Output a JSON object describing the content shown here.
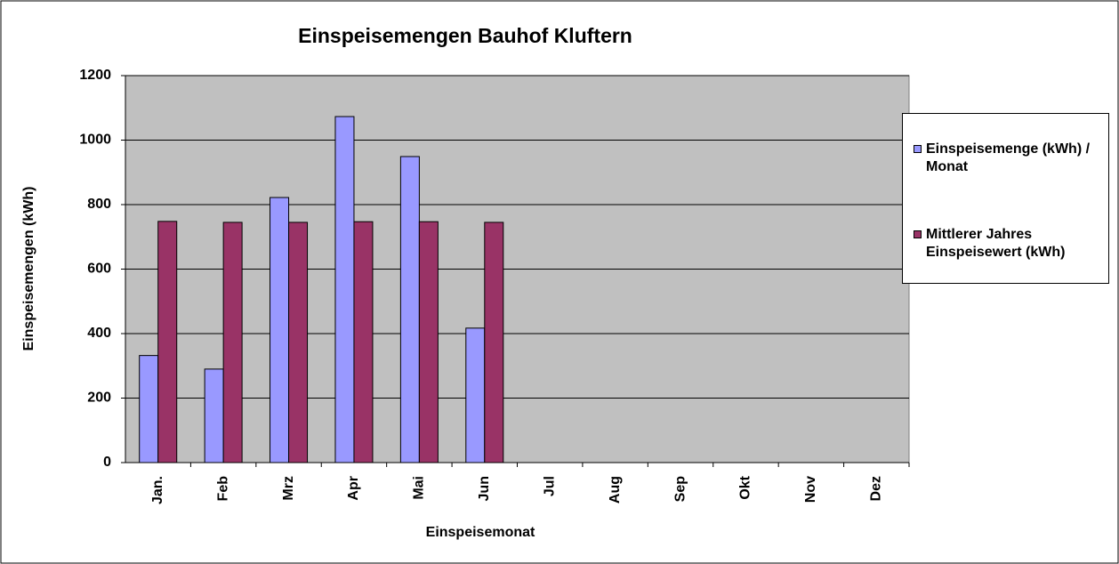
{
  "chart_data": {
    "type": "bar",
    "title": "Einspeisemengen Bauhof Kluftern",
    "x_label": "Einspeisemonat",
    "y_label": "Einspeisemengen (kWh)",
    "categories": [
      "Jan.",
      "Feb",
      "Mrz",
      "Apr",
      "Mai",
      "Jun",
      "Jul",
      "Aug",
      "Sep",
      "Okt",
      "Nov",
      "Dez"
    ],
    "series": [
      {
        "name": "Einspeisemenge (kWh) / Monat",
        "color": "#9999ff",
        "values": [
          332,
          290,
          822,
          1073,
          949,
          417,
          null,
          null,
          null,
          null,
          null,
          null
        ]
      },
      {
        "name": "Mittlerer Jahres Einspeisewert (kWh)",
        "color": "#993366",
        "values": [
          748,
          745,
          745,
          747,
          747,
          745,
          null,
          null,
          null,
          null,
          null,
          null
        ]
      }
    ],
    "ylim": [
      0,
      1200
    ],
    "yticks": [
      0,
      200,
      400,
      600,
      800,
      1000,
      1200
    ],
    "grid": true,
    "legend": "right"
  }
}
